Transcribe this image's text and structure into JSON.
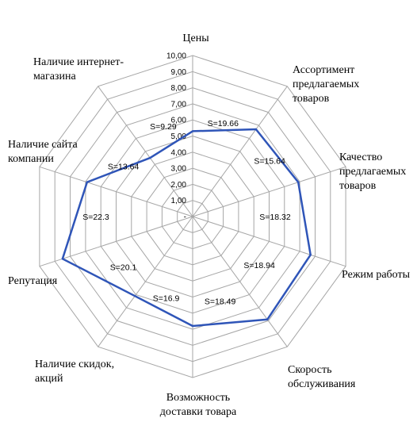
{
  "chart_data": {
    "type": "radar",
    "title": "",
    "categories": [
      "Цены",
      "Ассортимент предлагаемых товаров",
      "Качество предлагаемых товаров",
      "Режим работы",
      "Скорость обслуживания",
      "Возможность доставки товара",
      "Наличие скидок, акций",
      "Репутация",
      "Наличие сайта компании",
      "Наличие интернет-магазина"
    ],
    "category_label_lines": [
      [
        "Цены"
      ],
      [
        "Ассортимент",
        "предлагаемых",
        "товаров"
      ],
      [
        "Качество",
        "предлагаемых",
        "товаров"
      ],
      [
        "Режим работы"
      ],
      [
        "Скорость",
        "обслуживания"
      ],
      [
        "Возможность",
        "доставки товара"
      ],
      [
        "Наличие скидок,",
        "акций"
      ],
      [
        "Репутация"
      ],
      [
        "Наличие сайта",
        "компании"
      ],
      [
        "Наличие интернет-",
        "магазина"
      ]
    ],
    "tick_labels": [
      "-",
      "1,00",
      "2,00",
      "3,00",
      "4,00",
      "5,00",
      "6,00",
      "7,00",
      "8,00",
      "9,00",
      "10,00"
    ],
    "rlim": [
      0,
      10
    ],
    "grid": true,
    "series": [
      {
        "values": [
          5.3,
          6.7,
          6.9,
          7.7,
          7.9,
          6.8,
          6.1,
          8.5,
          6.9,
          4.5
        ],
        "color": "#2f55b8"
      }
    ],
    "area_labels": [
      "S=19.66",
      "S=15.64",
      "S=18.32",
      "S=18.94",
      "S=18.49",
      "S=16.9",
      "S=20.1",
      "S=22.3",
      "S=13.64",
      "S=9.29"
    ],
    "grid_color": "#a6a6a6"
  }
}
